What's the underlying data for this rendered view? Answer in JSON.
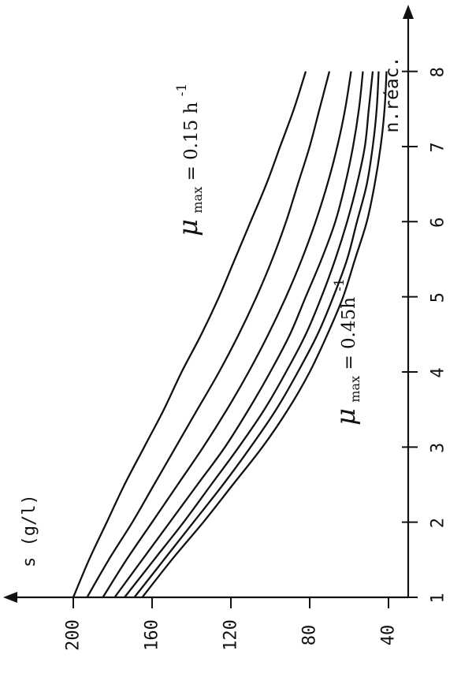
{
  "chart_data": {
    "type": "line",
    "orientation": "rotated-90-ccw",
    "xlabel": "n.réac.",
    "ylabel": "s (g/l)",
    "x_ticks": [
      1,
      2,
      3,
      4,
      5,
      6,
      7,
      8
    ],
    "y_ticks": [
      40,
      80,
      120,
      160,
      200
    ],
    "y_tick_labels": [
      "40",
      "80",
      "120",
      "160",
      "200"
    ],
    "xlim": [
      1,
      8.3
    ],
    "ylim": [
      30,
      222
    ],
    "grid": false,
    "series": [
      {
        "values": [
          [
            1,
            200
          ],
          [
            1.5,
            192
          ],
          [
            2,
            183
          ],
          [
            2.5,
            174
          ],
          [
            3,
            164
          ],
          [
            3.5,
            154
          ],
          [
            4,
            145
          ],
          [
            4.5,
            135
          ],
          [
            5,
            126
          ],
          [
            5.5,
            118
          ],
          [
            6,
            110
          ],
          [
            6.5,
            102
          ],
          [
            7,
            95
          ],
          [
            7.5,
            88
          ],
          [
            8,
            82
          ]
        ]
      },
      {
        "values": [
          [
            1,
            193
          ],
          [
            1.5,
            182
          ],
          [
            2,
            170
          ],
          [
            2.5,
            159
          ],
          [
            3,
            148
          ],
          [
            3.5,
            137
          ],
          [
            4,
            126
          ],
          [
            4.5,
            116
          ],
          [
            5,
            107
          ],
          [
            5.5,
            99
          ],
          [
            6,
            92
          ],
          [
            6.5,
            86
          ],
          [
            7,
            80
          ],
          [
            7.5,
            75
          ],
          [
            8,
            70
          ]
        ]
      },
      {
        "values": [
          [
            1,
            185
          ],
          [
            1.5,
            173
          ],
          [
            2,
            160
          ],
          [
            2.5,
            147
          ],
          [
            3,
            134
          ],
          [
            3.5,
            122
          ],
          [
            4,
            111
          ],
          [
            4.5,
            101
          ],
          [
            5,
            92
          ],
          [
            5.5,
            84
          ],
          [
            6,
            77
          ],
          [
            6.5,
            71
          ],
          [
            7,
            66
          ],
          [
            7.5,
            62
          ],
          [
            8,
            59
          ]
        ]
      },
      {
        "values": [
          [
            1,
            179
          ],
          [
            1.5,
            165
          ],
          [
            2,
            151
          ],
          [
            2.5,
            137
          ],
          [
            3,
            123
          ],
          [
            3.5,
            111
          ],
          [
            4,
            100
          ],
          [
            4.5,
            90
          ],
          [
            5,
            82
          ],
          [
            5.5,
            74
          ],
          [
            6,
            67
          ],
          [
            6.5,
            62
          ],
          [
            7,
            58
          ],
          [
            7.5,
            55
          ],
          [
            8,
            53
          ]
        ]
      },
      {
        "values": [
          [
            1,
            174
          ],
          [
            1.5,
            159
          ],
          [
            2,
            144
          ],
          [
            2.5,
            130
          ],
          [
            3,
            116
          ],
          [
            3.5,
            103
          ],
          [
            4,
            92
          ],
          [
            4.5,
            82
          ],
          [
            5,
            74
          ],
          [
            5.5,
            67
          ],
          [
            6,
            61
          ],
          [
            6.5,
            56
          ],
          [
            7,
            52
          ],
          [
            7.5,
            50
          ],
          [
            8,
            48
          ]
        ]
      },
      {
        "values": [
          [
            1,
            169
          ],
          [
            1.5,
            154
          ],
          [
            2,
            139
          ],
          [
            2.5,
            124
          ],
          [
            3,
            110
          ],
          [
            3.5,
            97
          ],
          [
            4,
            86
          ],
          [
            4.5,
            76
          ],
          [
            5,
            68
          ],
          [
            5.5,
            61
          ],
          [
            6,
            56
          ],
          [
            6.5,
            51
          ],
          [
            7,
            48
          ],
          [
            7.5,
            46
          ],
          [
            8,
            45
          ]
        ]
      },
      {
        "values": [
          [
            1,
            165
          ],
          [
            1.5,
            150
          ],
          [
            2,
            134
          ],
          [
            2.5,
            119
          ],
          [
            3,
            104
          ],
          [
            3.5,
            91
          ],
          [
            4,
            80
          ],
          [
            4.5,
            71
          ],
          [
            5,
            63
          ],
          [
            5.5,
            57
          ],
          [
            6,
            51
          ],
          [
            6.5,
            47
          ],
          [
            7,
            44
          ],
          [
            7.5,
            42
          ],
          [
            8,
            41
          ]
        ]
      }
    ],
    "annotations": [
      {
        "mu": "μ",
        "sub": "max",
        "text": " = 0.15 h",
        "sup": "-1"
      },
      {
        "mu": "μ",
        "sub": "max",
        "text": " = 0.45h",
        "sup": "-1"
      }
    ]
  }
}
